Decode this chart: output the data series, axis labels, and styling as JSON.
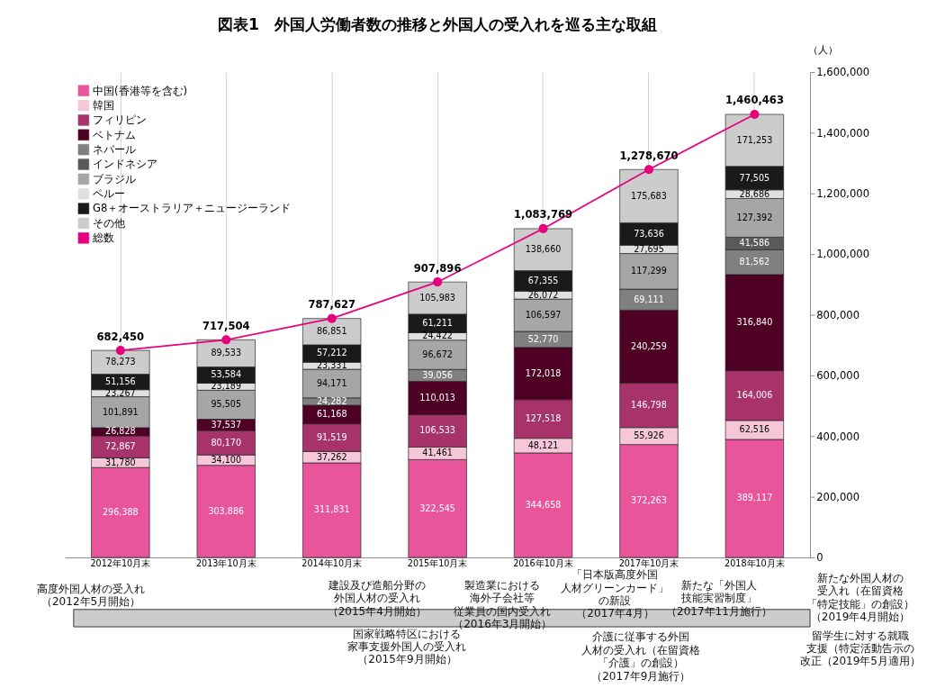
{
  "chart_data": {
    "type": "bar",
    "title": "図表1　外国人労働者数の推移と外国人の受入れを巡る主な取組",
    "ylabel": "（人）",
    "categories": [
      "2012年10月末",
      "2013年10月末",
      "2014年10月末",
      "2015年10月末",
      "2016年10月末",
      "2017年10月末",
      "2018年10月末"
    ],
    "stacked": true,
    "grid": "x",
    "legend": "top left",
    "marker": "circle",
    "ylim": [
      0,
      1600000
    ],
    "yticks": [
      0,
      {
        "value": 200000,
        "label": "200,000"
      },
      {
        "value": 400000,
        "label": "400,000"
      },
      {
        "value": 600000,
        "label": "600,000"
      },
      {
        "value": 800000,
        "label": "800,000"
      },
      {
        "value": 1000000,
        "label": "1,000,000"
      },
      {
        "value": 1200000,
        "label": "1,200,000"
      },
      {
        "value": 1400000,
        "label": "1,400,000"
      },
      {
        "value": 1600000,
        "label": "1,600,000"
      }
    ],
    "series": [
      {
        "name": "中国(香港等を含む)",
        "color": "#e8559b",
        "values": [
          296388,
          303886,
          311831,
          322545,
          344658,
          372263,
          389117
        ],
        "value_labels": [
          "296,388",
          "303,886",
          "311,831",
          "322,545",
          "344,658",
          "372,263",
          "389,117"
        ]
      },
      {
        "name": "韓国",
        "color": "#f6c6d9",
        "values": [
          31780,
          34100,
          37262,
          41461,
          48121,
          55926,
          62516
        ],
        "value_labels": [
          "31,780",
          "34,100",
          "37,262",
          "41,461",
          "48,121",
          "55,926",
          "62,516"
        ]
      },
      {
        "name": "フィリピン",
        "color": "#a8336b",
        "values": [
          72867,
          80170,
          91519,
          106533,
          127518,
          146798,
          164006
        ],
        "value_labels": [
          "72,867",
          "80,170",
          "91,519",
          "106,533",
          "127,518",
          "146,798",
          "164,006"
        ]
      },
      {
        "name": "ベトナム",
        "color": "#4f0025",
        "values": [
          26828,
          37537,
          61168,
          110013,
          172018,
          240259,
          316840
        ],
        "value_labels": [
          "26,828",
          "37,537",
          "61,168",
          "110,013",
          "172,018",
          "240,259",
          "316,840"
        ]
      },
      {
        "name": "ネパール",
        "color": "#808080",
        "values": [
          null,
          null,
          24282,
          39056,
          52770,
          69111,
          81562
        ],
        "value_labels": [
          null,
          null,
          "24,282",
          "39,056",
          "52,770",
          "69,111",
          "81,562"
        ]
      },
      {
        "name": "インドネシア",
        "color": "#5a5a5a",
        "values": [
          null,
          null,
          null,
          null,
          null,
          null,
          41586
        ],
        "value_labels": [
          null,
          null,
          null,
          null,
          null,
          null,
          "41,586"
        ]
      },
      {
        "name": "ブラジル",
        "color": "#a6a6a6",
        "values": [
          101891,
          95505,
          94171,
          96672,
          106597,
          117299,
          127392
        ],
        "value_labels": [
          "101,891",
          "95,505",
          "94,171",
          "96,672",
          "106,597",
          "117,299",
          "127,392"
        ]
      },
      {
        "name": "ペルー",
        "color": "#e0e0e0",
        "values": [
          23267,
          23189,
          23331,
          24422,
          26072,
          27695,
          28686
        ],
        "value_labels": [
          "23,267",
          "23,189",
          "23,331",
          "24,422",
          "26,072",
          "27,695",
          "28,686"
        ]
      },
      {
        "name": "G8＋オーストラリア＋ニュージーランド",
        "color": "#1a1a1a",
        "values": [
          51156,
          53584,
          57212,
          61211,
          67355,
          73636,
          77505
        ],
        "value_labels": [
          "51,156",
          "53,584",
          "57,212",
          "61,211",
          "67,355",
          "73,636",
          "77,505"
        ]
      },
      {
        "name": "その他",
        "color": "#cccccc",
        "values": [
          78273,
          89533,
          86851,
          105983,
          138660,
          175683,
          171253
        ],
        "value_labels": [
          "78,273",
          "89,533",
          "86,851",
          "105,983",
          "138,660",
          "175,683",
          "171,253"
        ]
      },
      {
        "name": "総数",
        "type": "line",
        "color": "#e6007e",
        "values": [
          682450,
          717504,
          787627,
          907896,
          1083769,
          1278670,
          1460463
        ],
        "value_labels": [
          "682,450",
          "717,504",
          "787,627",
          "907,896",
          "1,083,769",
          "1,278,670",
          "1,460,463"
        ]
      }
    ],
    "annotations": [
      "高度外国人材の受入れ（2012年5月開始）",
      "建設及び造船分野の外国人材の受入れ（2015年4月開始）",
      "国家戦略特区における家事支援外国人の受入れ（2015年9月開始）",
      "製造業における海外子会社等従業員の国内受入れ（2016年3月開始）",
      "「日本版高度外国人材グリーンカード」の新設（2017年4月）",
      "新たな「外国人技能実習制度」（2017年11月施行）",
      "介護に従事する外国人材の受入れ（在留資格「介護」の創設）（2017年9月施行）",
      "新たな外国人材の受入れ（在留資格「特定技能」の創設）（2019年4月開始）",
      "留学生に対する就職支援（特定活動告示の改正（2019年5月適用）"
    ]
  }
}
